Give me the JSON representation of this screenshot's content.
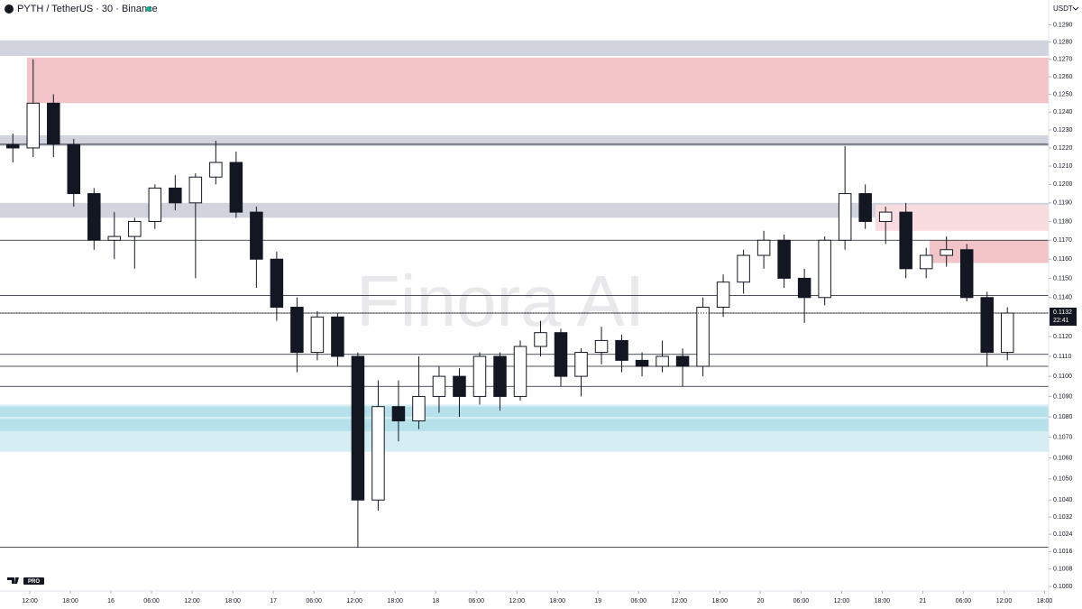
{
  "chart_data": {
    "type": "candlestick",
    "title": "PYTH / TetherUS · 30 · Binance",
    "currency": "USDT",
    "watermark": "Finora AI",
    "logo_badge": "PRO",
    "log_scale": true,
    "up_color": "#ffffff",
    "down_color": "#131722",
    "x": [
      8,
      11,
      14,
      17,
      20,
      23,
      26,
      29,
      32,
      35,
      38,
      41,
      44,
      47,
      50,
      53,
      56,
      59,
      62,
      65,
      68,
      71,
      74,
      77,
      80,
      83,
      86,
      89,
      92,
      95,
      98,
      101,
      104,
      107,
      110,
      113,
      116,
      119,
      122,
      125,
      128,
      131,
      134,
      137,
      140,
      143,
      146,
      149,
      152,
      155
    ],
    "open": [
      0.1222,
      0.122,
      0.1245,
      0.1222,
      0.1195,
      0.117,
      0.1172,
      0.118,
      0.1198,
      0.119,
      0.1204,
      0.1212,
      0.1185,
      0.116,
      0.1135,
      0.1112,
      0.113,
      0.111,
      0.104,
      0.1085,
      0.1078,
      0.109,
      0.11,
      0.109,
      0.111,
      0.109,
      0.1115,
      0.1122,
      0.11,
      0.1112,
      0.1118,
      0.1108,
      0.1105,
      0.111,
      0.1105,
      0.1135,
      0.1148,
      0.1162,
      0.117,
      0.115,
      0.114,
      0.117,
      0.1195,
      0.118,
      0.1185,
      0.1155,
      0.1162,
      0.1165,
      0.114,
      0.1112
    ],
    "high": [
      0.1228,
      0.127,
      0.125,
      0.1225,
      0.1198,
      0.1185,
      0.1182,
      0.12,
      0.1205,
      0.1206,
      0.1224,
      0.1218,
      0.1188,
      0.1164,
      0.114,
      0.1133,
      0.1132,
      0.1112,
      0.1098,
      0.1098,
      0.111,
      0.1105,
      0.1104,
      0.1112,
      0.1112,
      0.1118,
      0.1128,
      0.1124,
      0.1114,
      0.1125,
      0.1121,
      0.1112,
      0.1118,
      0.1114,
      0.114,
      0.1152,
      0.1165,
      0.1175,
      0.1173,
      0.1155,
      0.1172,
      0.1221,
      0.12,
      0.1188,
      0.119,
      0.1166,
      0.1172,
      0.1168,
      0.1143,
      0.1135
    ],
    "low": [
      0.1212,
      0.1215,
      0.1215,
      0.1188,
      0.1165,
      0.116,
      0.1155,
      0.1176,
      0.1186,
      0.115,
      0.12,
      0.1182,
      0.1145,
      0.1128,
      0.1102,
      0.1108,
      0.1105,
      0.1018,
      0.1035,
      0.1068,
      0.1074,
      0.1082,
      0.108,
      0.1086,
      0.1083,
      0.1088,
      0.111,
      0.1095,
      0.109,
      0.1106,
      0.1102,
      0.11,
      0.1102,
      0.1095,
      0.11,
      0.113,
      0.1142,
      0.1155,
      0.1145,
      0.1127,
      0.1136,
      0.1165,
      0.1176,
      0.1168,
      0.115,
      0.115,
      0.1156,
      0.1138,
      0.1105,
      0.1108
    ],
    "close": [
      0.122,
      0.1245,
      0.1222,
      0.1195,
      0.117,
      0.1172,
      0.118,
      0.1198,
      0.119,
      0.1204,
      0.1212,
      0.1185,
      0.116,
      0.1135,
      0.1112,
      0.113,
      0.111,
      0.104,
      0.1085,
      0.1078,
      0.109,
      0.11,
      0.109,
      0.111,
      0.109,
      0.1115,
      0.1122,
      0.11,
      0.1112,
      0.1118,
      0.1108,
      0.1105,
      0.111,
      0.1105,
      0.1135,
      0.1148,
      0.1162,
      0.117,
      0.115,
      0.114,
      0.117,
      0.1195,
      0.118,
      0.1185,
      0.1155,
      0.1162,
      0.1165,
      0.114,
      0.1112,
      0.1132
    ],
    "levels": [
      0.1222,
      0.117,
      0.1141,
      0.1132,
      0.1111,
      0.1105,
      0.1095,
      0.1018
    ],
    "zones": [
      {
        "low": 0.1272,
        "high": 0.1281,
        "color": "#d1d4dc"
      },
      {
        "low": 0.1245,
        "high": 0.1271,
        "from": 11.6,
        "color": "#f2c4c8"
      },
      {
        "low": 0.1221,
        "high": 0.1227,
        "color": "#d1d4dc"
      },
      {
        "low": 0.1182,
        "high": 0.119,
        "color": "#d1d4dc"
      },
      {
        "low": 0.1175,
        "high": 0.1189,
        "from": 137,
        "color": "#f8dcdf"
      },
      {
        "low": 0.1158,
        "high": 0.117,
        "from": 145,
        "color": "#f2c4c8"
      },
      {
        "low": 0.1063,
        "high": 0.1086,
        "color": "#d6eef3"
      },
      {
        "low": 0.108,
        "high": 0.1085,
        "color": "#b7e1ea"
      },
      {
        "low": 0.1073,
        "high": 0.1079,
        "color": "#b7e1ea"
      }
    ],
    "last_price": {
      "value": 0.1132,
      "label": "0.1132"
    },
    "countdown": "22:41",
    "xlim": [
      7.6,
      162.6
    ],
    "ylim": [
      0.0998,
      0.1294
    ],
    "xticks": [
      {
        "value": 12,
        "label": "12:00"
      },
      {
        "value": 18,
        "label": "18:00"
      },
      {
        "value": 24,
        "label": "16"
      },
      {
        "value": 30,
        "label": "06:00"
      },
      {
        "value": 36,
        "label": "12:00"
      },
      {
        "value": 42,
        "label": "18:00"
      },
      {
        "value": 48,
        "label": "17"
      },
      {
        "value": 54,
        "label": "06:00"
      },
      {
        "value": 60,
        "label": "12:00"
      },
      {
        "value": 66,
        "label": "18:00"
      },
      {
        "value": 72,
        "label": "18"
      },
      {
        "value": 78,
        "label": "06:00"
      },
      {
        "value": 84,
        "label": "12:00"
      },
      {
        "value": 90,
        "label": "18:00"
      },
      {
        "value": 96,
        "label": "19"
      },
      {
        "value": 102,
        "label": "06:00"
      },
      {
        "value": 108,
        "label": "12:00"
      },
      {
        "value": 114,
        "label": "18:00"
      },
      {
        "value": 120,
        "label": "20"
      },
      {
        "value": 126,
        "label": "06:00"
      },
      {
        "value": 132,
        "label": "12:00"
      },
      {
        "value": 138,
        "label": "18:00"
      },
      {
        "value": 144,
        "label": "21"
      },
      {
        "value": 150,
        "label": "06:00"
      },
      {
        "value": 156,
        "label": "12:00"
      },
      {
        "value": 162,
        "label": "18:00"
      }
    ],
    "yticks": [
      {
        "value": 0.129,
        "label": "0.1290"
      },
      {
        "value": 0.128,
        "label": "0.1280"
      },
      {
        "value": 0.127,
        "label": "0.1270"
      },
      {
        "value": 0.126,
        "label": "0.1260"
      },
      {
        "value": 0.125,
        "label": "0.1250"
      },
      {
        "value": 0.124,
        "label": "0.1240"
      },
      {
        "value": 0.123,
        "label": "0.1230"
      },
      {
        "value": 0.122,
        "label": "0.1220"
      },
      {
        "value": 0.121,
        "label": "0.1210"
      },
      {
        "value": 0.12,
        "label": "0.1200"
      },
      {
        "value": 0.119,
        "label": "0.1190"
      },
      {
        "value": 0.118,
        "label": "0.1180"
      },
      {
        "value": 0.117,
        "label": "0.1170"
      },
      {
        "value": 0.116,
        "label": "0.1160"
      },
      {
        "value": 0.115,
        "label": "0.1150"
      },
      {
        "value": 0.114,
        "label": "0.1140"
      },
      {
        "value": 0.112,
        "label": "0.1120"
      },
      {
        "value": 0.111,
        "label": "0.1110"
      },
      {
        "value": 0.11,
        "label": "0.1100"
      },
      {
        "value": 0.109,
        "label": "0.1090"
      },
      {
        "value": 0.108,
        "label": "0.1080"
      },
      {
        "value": 0.107,
        "label": "0.1070"
      },
      {
        "value": 0.106,
        "label": "0.1060"
      },
      {
        "value": 0.105,
        "label": "0.1050"
      },
      {
        "value": 0.104,
        "label": "0.1040"
      },
      {
        "value": 0.1032,
        "label": "0.1032"
      },
      {
        "value": 0.1024,
        "label": "0.1024"
      },
      {
        "value": 0.1016,
        "label": "0.1016"
      },
      {
        "value": 0.1008,
        "label": "0.1008"
      },
      {
        "value": 0.1,
        "label": "0.1000"
      }
    ]
  }
}
